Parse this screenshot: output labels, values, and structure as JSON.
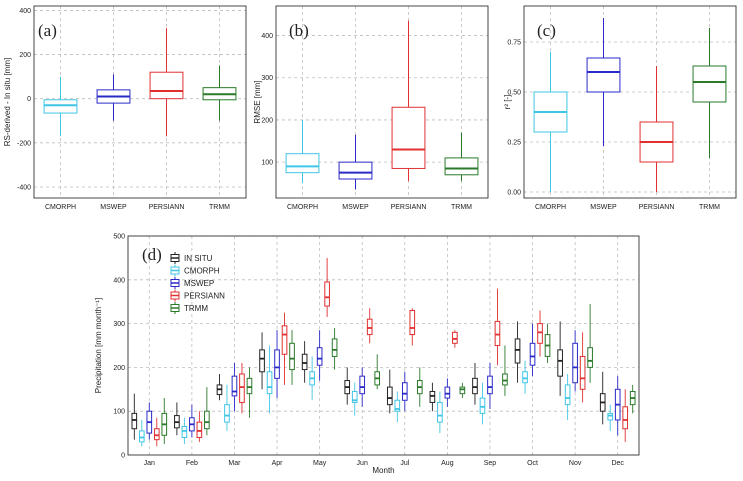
{
  "colors": {
    "in_situ": "#222222",
    "cmorph": "#3fc6e6",
    "mswep": "#2a2ac8",
    "persiann": "#e03030",
    "trmm": "#2a7a2a",
    "grid": "#bdbdbd"
  },
  "chart_data": [
    {
      "id": "a",
      "type": "box",
      "panel_label": "(a)",
      "ylabel": "RS-derived - In situ [mm]",
      "ylim": [
        -450,
        420
      ],
      "yticks": [
        -400,
        -200,
        0,
        200,
        400
      ],
      "ytick_labels": [
        "-400",
        "-200",
        "0",
        "200",
        "400"
      ],
      "categories": [
        "CMORPH",
        "MSWEP",
        "PERSIANN",
        "TRMM"
      ],
      "boxes": [
        {
          "name": "CMORPH",
          "color_key": "cmorph",
          "min": -170,
          "q1": -65,
          "median": -30,
          "q3": -5,
          "max": 100
        },
        {
          "name": "MSWEP",
          "color_key": "mswep",
          "min": -100,
          "q1": -20,
          "median": 10,
          "q3": 40,
          "max": 110
        },
        {
          "name": "PERSIANN",
          "color_key": "persiann",
          "min": -170,
          "q1": 0,
          "median": 35,
          "q3": 120,
          "max": 320
        },
        {
          "name": "TRMM",
          "color_key": "trmm",
          "min": -100,
          "q1": -5,
          "median": 20,
          "q3": 50,
          "max": 150
        }
      ]
    },
    {
      "id": "b",
      "type": "box",
      "panel_label": "(b)",
      "ylabel": "RMSE [mm]",
      "ylim": [
        15,
        470
      ],
      "yticks": [
        100,
        200,
        300,
        400
      ],
      "ytick_labels": [
        "100",
        "200",
        "300",
        "400"
      ],
      "categories": [
        "CMORPH",
        "MSWEP",
        "PERSIANN",
        "TRMM"
      ],
      "boxes": [
        {
          "name": "CMORPH",
          "color_key": "cmorph",
          "min": 50,
          "q1": 75,
          "median": 90,
          "q3": 120,
          "max": 200
        },
        {
          "name": "MSWEP",
          "color_key": "mswep",
          "min": 35,
          "q1": 60,
          "median": 75,
          "q3": 100,
          "max": 165
        },
        {
          "name": "PERSIANN",
          "color_key": "persiann",
          "min": 55,
          "q1": 85,
          "median": 130,
          "q3": 230,
          "max": 435
        },
        {
          "name": "TRMM",
          "color_key": "trmm",
          "min": 55,
          "q1": 70,
          "median": 85,
          "q3": 110,
          "max": 170
        }
      ]
    },
    {
      "id": "c",
      "type": "box",
      "panel_label": "(c)",
      "ylabel": "r² [-]",
      "ylim": [
        -0.03,
        0.93
      ],
      "yticks": [
        0,
        0.25,
        0.5,
        0.75
      ],
      "ytick_labels": [
        "0.00",
        "0.25",
        "0.50",
        "0.75"
      ],
      "categories": [
        "CMORPH",
        "MSWEP",
        "PERSIANN",
        "TRMM"
      ],
      "boxes": [
        {
          "name": "CMORPH",
          "color_key": "cmorph",
          "min": 0.0,
          "q1": 0.3,
          "median": 0.4,
          "q3": 0.5,
          "max": 0.7
        },
        {
          "name": "MSWEP",
          "color_key": "mswep",
          "min": 0.23,
          "q1": 0.5,
          "median": 0.6,
          "q3": 0.67,
          "max": 0.87
        },
        {
          "name": "PERSIANN",
          "color_key": "persiann",
          "min": 0.0,
          "q1": 0.15,
          "median": 0.25,
          "q3": 0.35,
          "max": 0.63
        },
        {
          "name": "TRMM",
          "color_key": "trmm",
          "min": 0.17,
          "q1": 0.45,
          "median": 0.55,
          "q3": 0.63,
          "max": 0.82
        }
      ]
    },
    {
      "id": "d",
      "type": "box",
      "panel_label": "(d)",
      "ylabel": "Precipitation [mm month⁻¹]",
      "xlabel": "Month",
      "ylim": [
        0,
        500
      ],
      "yticks": [
        0,
        100,
        200,
        300,
        400,
        500
      ],
      "ytick_labels": [
        "0",
        "100",
        "200",
        "300",
        "400",
        "500"
      ],
      "categories": [
        "Jan",
        "Feb",
        "Mar",
        "Apr",
        "May",
        "Jun",
        "Jul",
        "Aug",
        "Sep",
        "Oct",
        "Nov",
        "Dec"
      ],
      "legend": [
        {
          "label": "IN SITU",
          "color_key": "in_situ"
        },
        {
          "label": "CMORPH",
          "color_key": "cmorph"
        },
        {
          "label": "MSWEP",
          "color_key": "mswep"
        },
        {
          "label": "PERSIANN",
          "color_key": "persiann"
        },
        {
          "label": "TRMM",
          "color_key": "trmm"
        }
      ],
      "legend_position": "top-left",
      "series": [
        {
          "name": "IN SITU",
          "color_key": "in_situ",
          "boxes": [
            [
              35,
              60,
              80,
              95,
              140
            ],
            [
              45,
              62,
              75,
              90,
              120
            ],
            [
              125,
              138,
              150,
              160,
              185
            ],
            [
              150,
              190,
              220,
              240,
              280
            ],
            [
              165,
              195,
              210,
              230,
              260
            ],
            [
              115,
              140,
              155,
              170,
              200
            ],
            [
              95,
              115,
              130,
              155,
              195
            ],
            [
              100,
              120,
              135,
              145,
              165
            ],
            [
              115,
              140,
              155,
              175,
              210
            ],
            [
              165,
              210,
              240,
              265,
              305
            ],
            [
              135,
              180,
              215,
              240,
              305
            ],
            [
              70,
              100,
              120,
              140,
              190
            ]
          ]
        },
        {
          "name": "CMORPH",
          "color_key": "cmorph",
          "boxes": [
            [
              20,
              30,
              40,
              55,
              80
            ],
            [
              25,
              40,
              55,
              65,
              85
            ],
            [
              55,
              75,
              90,
              115,
              160
            ],
            [
              95,
              140,
              155,
              190,
              250
            ],
            [
              125,
              160,
              175,
              190,
              225
            ],
            [
              90,
              120,
              125,
              145,
              165
            ],
            [
              75,
              100,
              105,
              125,
              145
            ],
            [
              50,
              75,
              90,
              120,
              145
            ],
            [
              70,
              95,
              110,
              130,
              165
            ],
            [
              140,
              165,
              175,
              190,
              215
            ],
            [
              80,
              115,
              130,
              160,
              185
            ],
            [
              55,
              80,
              90,
              95,
              115
            ]
          ]
        },
        {
          "name": "MSWEP",
          "color_key": "mswep",
          "boxes": [
            [
              35,
              50,
              75,
              100,
              120
            ],
            [
              40,
              55,
              70,
              85,
              115
            ],
            [
              100,
              135,
              145,
              180,
              210
            ],
            [
              130,
              175,
              200,
              240,
              285
            ],
            [
              170,
              205,
              220,
              245,
              285
            ],
            [
              110,
              140,
              155,
              180,
              200
            ],
            [
              100,
              125,
              140,
              165,
              190
            ],
            [
              110,
              130,
              140,
              155,
              175
            ],
            [
              105,
              140,
              155,
              180,
              210
            ],
            [
              180,
              205,
              225,
              255,
              300
            ],
            [
              145,
              165,
              200,
              255,
              285
            ],
            [
              45,
              80,
              115,
              150,
              180
            ]
          ]
        },
        {
          "name": "PERSIANN",
          "color_key": "persiann",
          "boxes": [
            [
              20,
              35,
              45,
              60,
              85
            ],
            [
              30,
              40,
              55,
              75,
              100
            ],
            [
              95,
              120,
              155,
              185,
              210
            ],
            [
              160,
              230,
              275,
              295,
              325
            ],
            [
              315,
              340,
              360,
              395,
              450
            ],
            [
              255,
              275,
              290,
              310,
              335
            ],
            [
              250,
              275,
              290,
              330,
              335
            ],
            [
              245,
              255,
              265,
              280,
              285
            ],
            [
              205,
              250,
              275,
              305,
              380
            ],
            [
              225,
              255,
              280,
              300,
              330
            ],
            [
              120,
              150,
              175,
              225,
              280
            ],
            [
              30,
              60,
              80,
              110,
              150
            ]
          ]
        },
        {
          "name": "TRMM",
          "color_key": "trmm",
          "boxes": [
            [
              25,
              45,
              70,
              95,
              130
            ],
            [
              45,
              60,
              75,
              100,
              155
            ],
            [
              85,
              140,
              155,
              175,
              200
            ],
            [
              160,
              195,
              220,
              255,
              285
            ],
            [
              195,
              225,
              240,
              265,
              290
            ],
            [
              150,
              160,
              175,
              190,
              230
            ],
            [
              110,
              140,
              155,
              170,
              200
            ],
            [
              130,
              140,
              150,
              155,
              165
            ],
            [
              135,
              160,
              170,
              185,
              250
            ],
            [
              210,
              225,
              250,
              275,
              300
            ],
            [
              165,
              200,
              215,
              245,
              345
            ],
            [
              95,
              115,
              130,
              145,
              160
            ]
          ]
        }
      ]
    }
  ]
}
